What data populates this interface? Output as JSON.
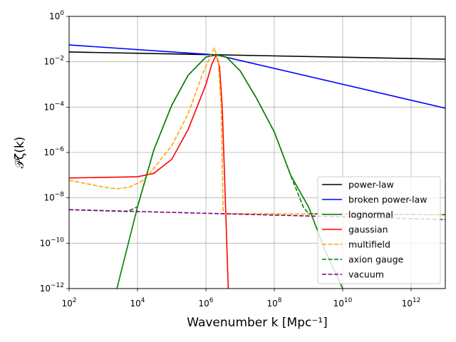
{
  "chart_data": {
    "type": "line",
    "title": "",
    "xlabel": "Wavenumber k  [Mpc⁻¹]",
    "ylabel": "𝒫ζ(k)",
    "xscale": "log",
    "yscale": "log",
    "xlim": [
      100,
      10000000000000.0
    ],
    "ylim": [
      1e-12,
      1
    ],
    "grid": true,
    "legend_position": "lower-right",
    "x_ticks": [
      {
        "value": 100,
        "base": "10",
        "exp": "2"
      },
      {
        "value": 10000,
        "base": "10",
        "exp": "4"
      },
      {
        "value": 1000000,
        "base": "10",
        "exp": "6"
      },
      {
        "value": 100000000,
        "base": "10",
        "exp": "8"
      },
      {
        "value": 10000000000,
        "base": "10",
        "exp": "10"
      },
      {
        "value": 1000000000000,
        "base": "10",
        "exp": "12"
      }
    ],
    "y_ticks": [
      {
        "value": 1e-12,
        "base": "10",
        "exp": "−12"
      },
      {
        "value": 1e-10,
        "base": "10",
        "exp": "−10"
      },
      {
        "value": 1e-08,
        "base": "10",
        "exp": "−8"
      },
      {
        "value": 1e-06,
        "base": "10",
        "exp": "−6"
      },
      {
        "value": 0.0001,
        "base": "10",
        "exp": "−4"
      },
      {
        "value": 0.01,
        "base": "10",
        "exp": "−2"
      },
      {
        "value": 1,
        "base": "10",
        "exp": "0"
      }
    ],
    "series": [
      {
        "name": "power-law",
        "color": "#000000",
        "dash": false,
        "points": [
          [
            100,
            0.027
          ],
          [
            10000000000000.0,
            0.013
          ]
        ]
      },
      {
        "name": "broken power-law",
        "color": "#0000ff",
        "dash": false,
        "points": [
          [
            100,
            0.055
          ],
          [
            2000000.0,
            0.02
          ],
          [
            10000000000000.0,
            9e-05
          ]
        ]
      },
      {
        "name": "lognormal",
        "color": "#008000",
        "dash": false,
        "points": [
          [
            2500.0,
            1e-12
          ],
          [
            10000.0,
            4e-09
          ],
          [
            30000.0,
            1.3e-06
          ],
          [
            100000.0,
            0.00012
          ],
          [
            300000.0,
            0.0025
          ],
          [
            1000000.0,
            0.016
          ],
          [
            2000000.0,
            0.02
          ],
          [
            4000000.0,
            0.016
          ],
          [
            10000000.0,
            0.004
          ],
          [
            30000000.0,
            0.00025
          ],
          [
            100000000.0,
            8e-06
          ],
          [
            300000000.0,
            1e-07
          ],
          [
            1000000000.0,
            4e-09
          ],
          [
            3000000000.0,
            5e-11
          ],
          [
            10000000000.0,
            1e-12
          ]
        ]
      },
      {
        "name": "gaussian",
        "color": "#ff0000",
        "dash": false,
        "points": [
          [
            100,
            7.5e-08
          ],
          [
            10000.0,
            8.5e-08
          ],
          [
            30000.0,
            1.2e-07
          ],
          [
            100000.0,
            5e-07
          ],
          [
            300000.0,
            1e-05
          ],
          [
            1000000.0,
            0.001
          ],
          [
            1500000.0,
            0.008
          ],
          [
            2000000.0,
            0.02
          ],
          [
            2500000.0,
            0.006
          ],
          [
            3000000.0,
            0.0001
          ],
          [
            3500000.0,
            1e-07
          ],
          [
            4500000.0,
            1e-12
          ]
        ]
      },
      {
        "name": "multifield",
        "color": "#ffa500",
        "dash": true,
        "points": [
          [
            100,
            6e-08
          ],
          [
            1000.0,
            3e-08
          ],
          [
            2500.0,
            2.5e-08
          ],
          [
            6000.0,
            3e-08
          ],
          [
            15000.0,
            6e-08
          ],
          [
            30000.0,
            2e-07
          ],
          [
            100000.0,
            2e-06
          ],
          [
            300000.0,
            5e-05
          ],
          [
            800000.0,
            0.003
          ],
          [
            1500000.0,
            0.025
          ],
          [
            1800000.0,
            0.04
          ],
          [
            2300000.0,
            0.01
          ],
          [
            2800000.0,
            0.0001
          ],
          [
            3200000.0,
            2e-09
          ],
          [
            5000000.0,
            2e-09
          ],
          [
            10000000000000.0,
            1.8e-09
          ]
        ]
      },
      {
        "name": "axion gauge",
        "color": "#008000",
        "dash": true,
        "points": [
          [
            100,
            3e-09
          ],
          [
            5000.0,
            2.5e-09
          ],
          [
            10000.0,
            4e-09
          ],
          [
            30000.0,
            1.3e-06
          ],
          [
            100000.0,
            0.00012
          ],
          [
            300000.0,
            0.0025
          ],
          [
            1000000.0,
            0.016
          ],
          [
            2000000.0,
            0.02
          ],
          [
            4000000.0,
            0.016
          ],
          [
            10000000.0,
            0.004
          ],
          [
            30000000.0,
            0.00025
          ],
          [
            100000000.0,
            8e-06
          ],
          [
            300000000.0,
            1e-07
          ],
          [
            700000000.0,
            4e-09
          ],
          [
            1000000000.0,
            2e-09
          ],
          [
            10000000000000.0,
            1.8e-09
          ]
        ]
      },
      {
        "name": "vacuum",
        "color": "#800080",
        "dash": true,
        "points": [
          [
            100,
            3e-09
          ],
          [
            10000000000000.0,
            1.1e-09
          ]
        ]
      }
    ]
  }
}
